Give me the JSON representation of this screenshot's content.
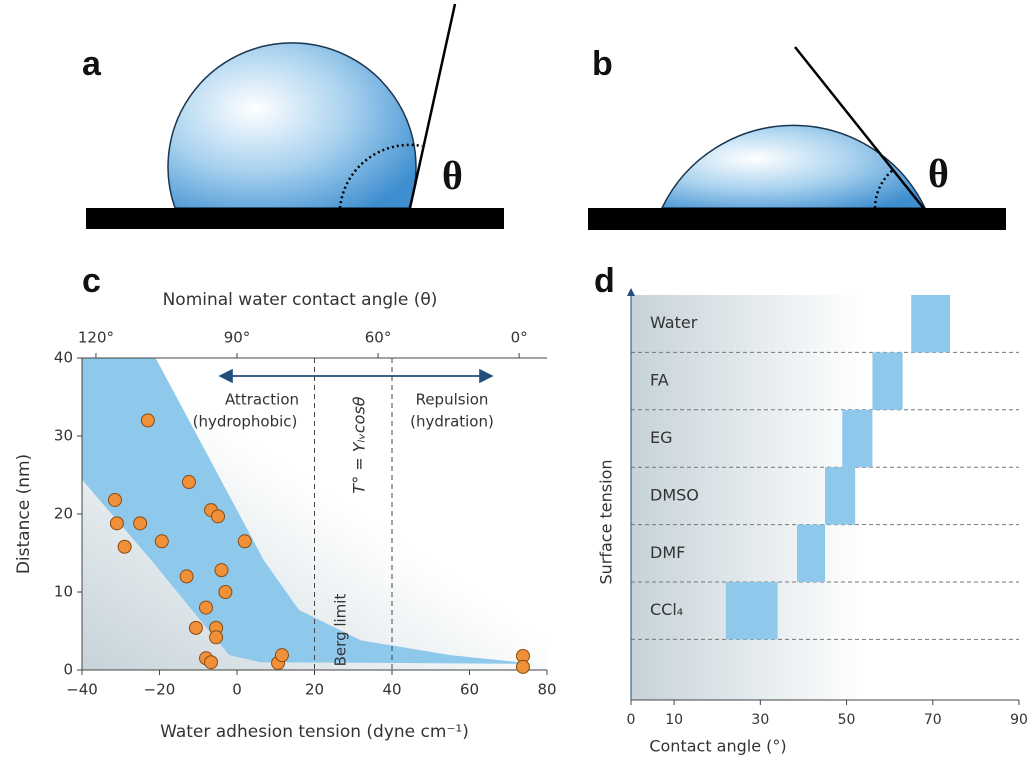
{
  "panels": [
    {
      "label": "a",
      "angle_symbol": "θ"
    },
    {
      "label": "b",
      "angle_symbol": "θ"
    }
  ],
  "chart_data": [
    {
      "type": "scatter",
      "label": "c",
      "x_label": "Water adhesion tension (dyne cm⁻¹)",
      "y_label": "Distance (nm)",
      "x2_label": "Nominal water contact angle (θ)",
      "xlim": [
        -40,
        80
      ],
      "ylim": [
        0,
        40
      ],
      "xticks": [
        {
          "value": -40,
          "label": "−40"
        },
        {
          "value": -20,
          "label": "−20"
        },
        0,
        20,
        40,
        60,
        80
      ],
      "yticks": [
        0,
        10,
        20,
        30,
        40
      ],
      "x2ticks": [
        {
          "value": -36.4,
          "label": "120°"
        },
        {
          "value": 0,
          "label": "90°"
        },
        {
          "value": 36.4,
          "label": "60°"
        },
        {
          "value": 72.8,
          "label": "0°"
        }
      ],
      "color": "#f0913a",
      "x": [
        -23,
        -31.5,
        -31,
        -29,
        -25,
        -19.4,
        -12.4,
        -6.7,
        -4.9,
        2,
        -13,
        -4,
        -3,
        -8,
        -10.6,
        -5.4,
        -5.4,
        -8,
        -6.7,
        10.6,
        11.6,
        73.8,
        73.8
      ],
      "y": [
        32,
        21.8,
        18.8,
        15.8,
        18.8,
        16.5,
        24.1,
        20.5,
        19.7,
        16.5,
        12,
        12.8,
        10,
        8,
        5.4,
        5.4,
        4.2,
        1.5,
        1,
        0.9,
        1.9,
        1.8,
        0.4
      ],
      "band": {
        "color": "#8ec9ec",
        "upper_x": [
          -40,
          -21,
          7,
          16,
          32,
          55,
          73
        ],
        "upper_y": [
          40,
          40,
          14,
          7.7,
          3.8,
          1.9,
          1
        ],
        "lower_x": [
          -40,
          -22,
          -9.5,
          -2,
          6,
          73
        ],
        "lower_y": [
          24.4,
          14,
          6.4,
          1.9,
          1,
          0.8
        ]
      },
      "vlines": [
        20,
        40
      ],
      "annotations": [
        "Attraction",
        "(hydrophobic)",
        "Repulsion",
        "(hydration)",
        "Berg limit",
        "T° = Yₗᵥcosθ"
      ]
    },
    {
      "type": "range_bar",
      "label": "d",
      "x_label": "Contact angle (°)",
      "y_label": "Surface tension",
      "xlim": [
        0,
        90
      ],
      "xticks": [
        0,
        10,
        30,
        50,
        70,
        90
      ],
      "color": "#8ec9ec",
      "categories": [
        "Water",
        "FA",
        "EG",
        "DMSO",
        "DMF",
        "CCl₄"
      ],
      "ranges": [
        [
          65,
          74
        ],
        [
          56,
          63
        ],
        [
          49,
          56
        ],
        [
          45,
          52
        ],
        [
          38.5,
          45
        ],
        [
          22,
          34
        ]
      ]
    }
  ]
}
